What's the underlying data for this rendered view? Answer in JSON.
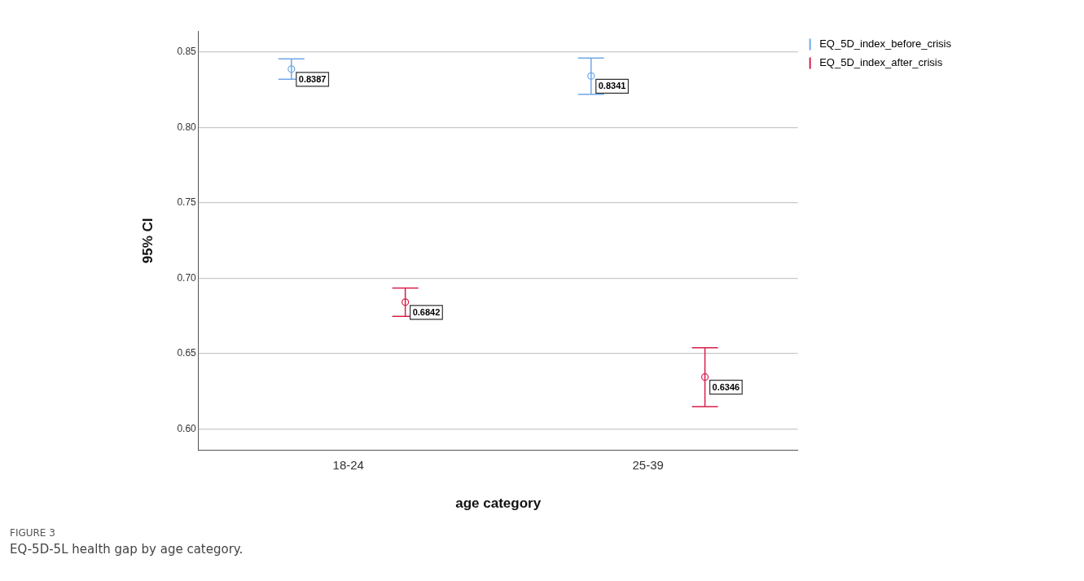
{
  "chart_data": {
    "type": "scatter",
    "xlabel": "age category",
    "ylabel": "95% CI",
    "categories": [
      "18-24",
      "25-39"
    ],
    "series": [
      {
        "name": "EQ_5D_index_before_crisis",
        "color": "#6fa8e8",
        "values": [
          0.8387,
          0.8341
        ],
        "errors": [
          [
            0.832,
            0.8455
          ],
          [
            0.822,
            0.846
          ]
        ]
      },
      {
        "name": "EQ_5D_index_after_crisis",
        "color": "#d81e4a",
        "values": [
          0.6842,
          0.6346
        ],
        "errors": [
          [
            0.6748,
            0.6935
          ],
          [
            0.615,
            0.654
          ]
        ]
      }
    ],
    "ylim": [
      0.586,
      0.864
    ],
    "yticks": [
      {
        "value": 0.6,
        "label": "0.60"
      },
      0.65,
      {
        "value": 0.7,
        "label": "0.70"
      },
      0.75,
      {
        "value": 0.8,
        "label": "0.80"
      },
      0.85
    ],
    "grid": "y",
    "legend": "top right",
    "marker": "circle",
    "data_labels": true,
    "annotations": [
      "FIGURE 3",
      "EQ-5D-5L health gap by age category."
    ]
  }
}
